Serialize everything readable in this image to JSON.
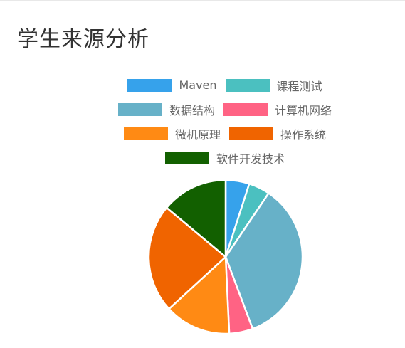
{
  "title": "学生来源分析",
  "chart_data": {
    "type": "pie",
    "title": "",
    "categories": [
      "Maven",
      "课程测试",
      "数据结构",
      "计算机网络",
      "微机原理",
      "操作系统",
      "软件开发技术"
    ],
    "values": [
      5,
      4.5,
      35,
      5,
      14,
      23,
      14
    ],
    "colors": [
      "#36A2EB",
      "#4BC0C0",
      "#67B1C8",
      "#FF6384",
      "#FF8A14",
      "#F06400",
      "#126000"
    ],
    "legend_position": "top",
    "legend_rows": [
      [
        0,
        1
      ],
      [
        2,
        3
      ],
      [
        4,
        5
      ],
      [
        6
      ]
    ]
  }
}
